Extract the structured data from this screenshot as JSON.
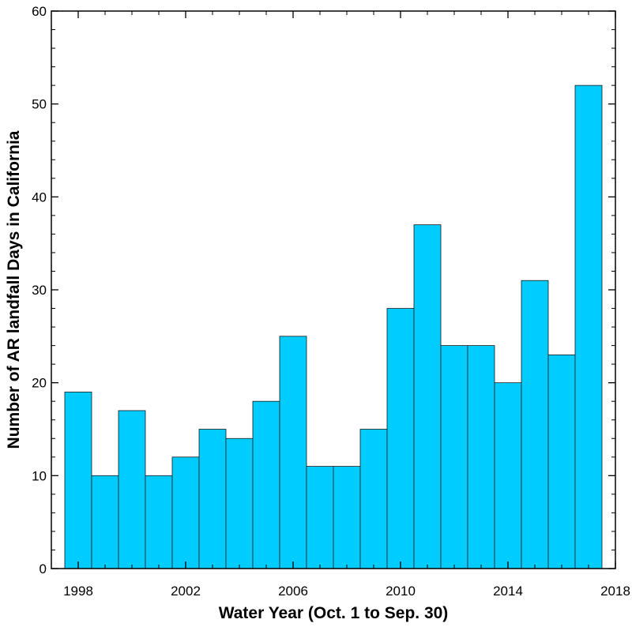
{
  "chart_data": {
    "type": "bar",
    "xlabel": "Water Year (Oct. 1 to Sep. 30)",
    "ylabel": "Number of AR landfall Days in California",
    "x": [
      1998,
      1999,
      2000,
      2001,
      2002,
      2003,
      2004,
      2005,
      2006,
      2007,
      2008,
      2009,
      2010,
      2011,
      2012,
      2013,
      2014,
      2015,
      2016,
      2017
    ],
    "values": [
      19,
      10,
      17,
      10,
      12,
      15,
      14,
      18,
      25,
      11,
      11,
      15,
      28,
      37,
      24,
      24,
      20,
      31,
      23,
      52
    ],
    "xlim": [
      1997,
      2018
    ],
    "ylim": [
      0,
      60
    ],
    "xticks": [
      "1998",
      "2002",
      "2006",
      "2010",
      "2014",
      "2018"
    ],
    "yticks": [
      "0",
      "10",
      "20",
      "30",
      "40",
      "50",
      "60"
    ],
    "bar_color": "#00CCFF",
    "grid": false,
    "legend": false
  }
}
